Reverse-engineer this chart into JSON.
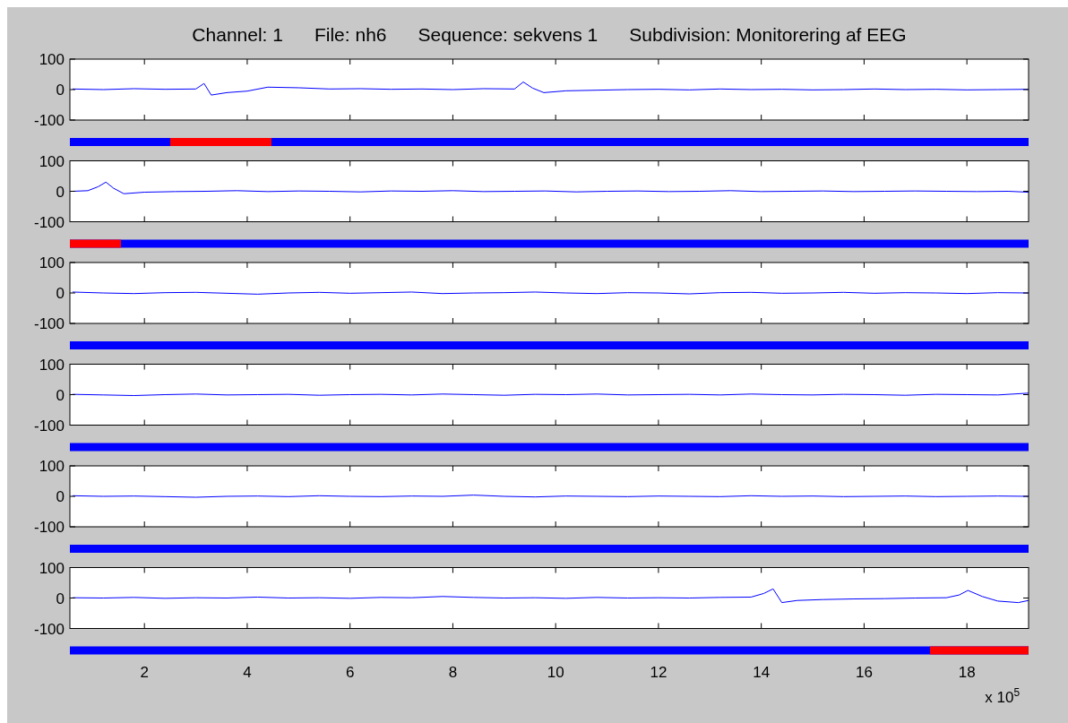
{
  "chart_data": [
    {
      "type": "line",
      "title": "Channel: 1      File: nh6      Sequence: sekvens 1      Subdivision: Monitorering af EEG",
      "xlim": [
        0.55,
        19.2
      ],
      "xticks": [
        2,
        4,
        6,
        8,
        10,
        12,
        14,
        16,
        18
      ],
      "ylim": [
        -100,
        100
      ],
      "yticks": [
        -100,
        0,
        100
      ],
      "tick_labels": "y",
      "series": [
        {
          "color": "#0000ff",
          "x": [
            0.6,
            1.2,
            1.8,
            2.4,
            3.0,
            3.16,
            3.3,
            3.6,
            4.0,
            4.4,
            5.0,
            5.6,
            6.2,
            6.8,
            7.4,
            8.0,
            8.6,
            9.2,
            9.37,
            9.55,
            9.77,
            10.2,
            10.8,
            11.4,
            12.0,
            12.6,
            13.2,
            13.8,
            14.4,
            15.0,
            15.6,
            16.2,
            16.8,
            17.4,
            18.0,
            18.6,
            19.2
          ],
          "values": [
            2,
            0,
            3,
            1,
            2,
            20,
            -18,
            -10,
            -5,
            8,
            6,
            2,
            3,
            1,
            2,
            0,
            3,
            2,
            25,
            5,
            -10,
            -4,
            -2,
            0,
            1,
            -1,
            2,
            0,
            1,
            -1,
            0,
            2,
            0,
            1,
            -1,
            0,
            1
          ]
        }
      ]
    },
    {
      "type": "line",
      "xlim": [
        0.55,
        19.2
      ],
      "xticks": [
        2,
        4,
        6,
        8,
        10,
        12,
        14,
        16,
        18
      ],
      "ylim": [
        -100,
        100
      ],
      "yticks": [
        -100,
        0,
        100
      ],
      "tick_labels": "y",
      "series": [
        {
          "color": "#0000ff",
          "x": [
            0.6,
            0.9,
            1.1,
            1.25,
            1.4,
            1.6,
            2.0,
            2.6,
            3.2,
            3.8,
            4.4,
            5.0,
            5.6,
            6.2,
            6.8,
            7.4,
            8.0,
            8.6,
            9.2,
            9.8,
            10.4,
            11.0,
            11.6,
            12.2,
            12.8,
            13.4,
            14.0,
            14.6,
            15.2,
            15.8,
            16.4,
            17.0,
            17.6,
            18.2,
            18.8,
            19.2
          ],
          "values": [
            0,
            2,
            15,
            30,
            10,
            -8,
            -3,
            -1,
            0,
            2,
            -1,
            1,
            0,
            -2,
            1,
            0,
            2,
            -1,
            0,
            1,
            -2,
            0,
            1,
            -1,
            0,
            2,
            -1,
            0,
            1,
            -1,
            0,
            1,
            0,
            -1,
            0,
            -3
          ]
        }
      ]
    },
    {
      "type": "line",
      "xlim": [
        0.55,
        19.2
      ],
      "xticks": [
        2,
        4,
        6,
        8,
        10,
        12,
        14,
        16,
        18
      ],
      "ylim": [
        -100,
        100
      ],
      "yticks": [
        -100,
        0,
        100
      ],
      "tick_labels": "y",
      "series": [
        {
          "color": "#0000ff",
          "x": [
            0.6,
            1.2,
            1.8,
            2.4,
            3.0,
            3.6,
            4.2,
            4.8,
            5.4,
            6.0,
            6.6,
            7.2,
            7.8,
            8.4,
            9.0,
            9.6,
            10.2,
            10.8,
            11.4,
            12.0,
            12.6,
            13.2,
            13.8,
            14.4,
            15.0,
            15.6,
            16.2,
            16.8,
            17.4,
            18.0,
            18.6,
            19.2
          ],
          "values": [
            3,
            0,
            -2,
            1,
            2,
            -1,
            -4,
            0,
            2,
            -1,
            1,
            3,
            -2,
            0,
            1,
            3,
            0,
            -2,
            1,
            0,
            -3,
            1,
            2,
            -1,
            0,
            2,
            -1,
            1,
            0,
            -2,
            1,
            0
          ]
        }
      ]
    },
    {
      "type": "line",
      "xlim": [
        0.55,
        19.2
      ],
      "xticks": [
        2,
        4,
        6,
        8,
        10,
        12,
        14,
        16,
        18
      ],
      "ylim": [
        -100,
        100
      ],
      "yticks": [
        -100,
        0,
        100
      ],
      "tick_labels": "y",
      "series": [
        {
          "color": "#0000ff",
          "x": [
            0.6,
            1.2,
            1.8,
            2.4,
            3.0,
            3.6,
            4.2,
            4.8,
            5.4,
            6.0,
            6.6,
            7.2,
            7.8,
            8.4,
            9.0,
            9.6,
            10.2,
            10.8,
            11.4,
            12.0,
            12.6,
            13.2,
            13.8,
            14.4,
            15.0,
            15.6,
            16.2,
            16.8,
            17.4,
            18.0,
            18.6,
            19.2
          ],
          "values": [
            1,
            -1,
            -3,
            0,
            2,
            -1,
            0,
            1,
            -2,
            0,
            1,
            -1,
            2,
            0,
            -2,
            1,
            0,
            2,
            -1,
            0,
            1,
            -1,
            2,
            0,
            -1,
            1,
            0,
            -2,
            1,
            0,
            -1,
            5
          ]
        }
      ]
    },
    {
      "type": "line",
      "xlim": [
        0.55,
        19.2
      ],
      "xticks": [
        2,
        4,
        6,
        8,
        10,
        12,
        14,
        16,
        18
      ],
      "ylim": [
        -100,
        100
      ],
      "yticks": [
        -100,
        0,
        100
      ],
      "tick_labels": "y",
      "series": [
        {
          "color": "#0000ff",
          "x": [
            0.6,
            1.2,
            1.8,
            2.4,
            3.0,
            3.6,
            4.2,
            4.8,
            5.4,
            6.0,
            6.6,
            7.2,
            7.8,
            8.4,
            9.0,
            9.6,
            10.2,
            10.8,
            11.4,
            12.0,
            12.6,
            13.2,
            13.8,
            14.4,
            15.0,
            15.6,
            16.2,
            16.8,
            17.4,
            18.0,
            18.6,
            19.2
          ],
          "values": [
            2,
            0,
            1,
            -1,
            -3,
            0,
            1,
            -1,
            2,
            0,
            -1,
            1,
            0,
            4,
            0,
            -2,
            1,
            0,
            -1,
            1,
            0,
            -1,
            2,
            0,
            1,
            -1,
            0,
            1,
            -1,
            0,
            1,
            0
          ]
        }
      ]
    },
    {
      "type": "line",
      "xlim": [
        0.55,
        19.2
      ],
      "xticks": [
        2,
        4,
        6,
        8,
        10,
        12,
        14,
        16,
        18
      ],
      "ylim": [
        -100,
        100
      ],
      "yticks": [
        -100,
        0,
        100
      ],
      "annotations": [
        "x 10$^{5}$"
      ],
      "series": [
        {
          "color": "#0000ff",
          "x": [
            0.6,
            1.2,
            1.8,
            2.4,
            3.0,
            3.6,
            4.2,
            4.8,
            5.4,
            6.0,
            6.6,
            7.2,
            7.8,
            8.4,
            9.0,
            9.6,
            10.2,
            10.8,
            11.4,
            12.0,
            12.6,
            13.2,
            13.8,
            14.05,
            14.23,
            14.4,
            14.7,
            15.2,
            15.8,
            16.4,
            17.0,
            17.6,
            17.85,
            18.02,
            18.3,
            18.6,
            19.0,
            19.2
          ],
          "values": [
            1,
            0,
            2,
            -1,
            1,
            0,
            3,
            0,
            1,
            -1,
            2,
            1,
            5,
            2,
            0,
            1,
            -1,
            2,
            0,
            1,
            0,
            2,
            3,
            15,
            30,
            -15,
            -8,
            -5,
            -3,
            -2,
            0,
            1,
            10,
            25,
            5,
            -10,
            -15,
            -8
          ]
        }
      ]
    }
  ]
}
